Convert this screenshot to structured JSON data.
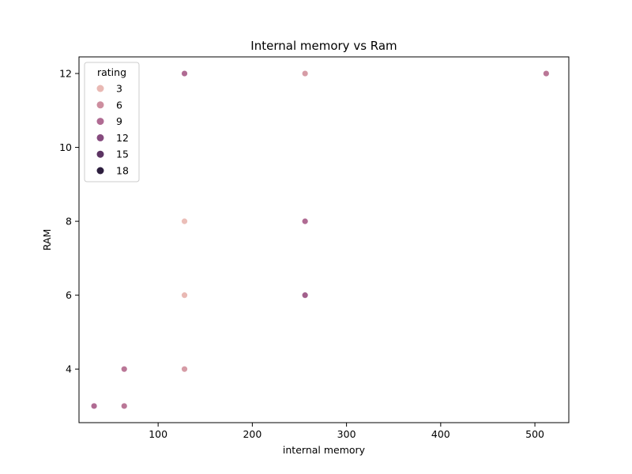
{
  "chart_data": {
    "type": "scatter",
    "title": "Internal memory vs Ram",
    "xlabel": "internal memory",
    "ylabel": "RAM",
    "xlim": [
      16,
      536
    ],
    "ylim": [
      2.55,
      12.45
    ],
    "x_ticks": [
      100,
      200,
      300,
      400,
      500
    ],
    "y_ticks": [
      4,
      6,
      8,
      10,
      12
    ],
    "grid": false,
    "legend": {
      "title": "rating",
      "placement": "top-left",
      "entries": [
        {
          "label": "3",
          "color": "#e9b9b4"
        },
        {
          "label": "6",
          "color": "#cd8e9f"
        },
        {
          "label": "9",
          "color": "#b06b93"
        },
        {
          "label": "12",
          "color": "#864b7e"
        },
        {
          "label": "15",
          "color": "#5c3463"
        },
        {
          "label": "18",
          "color": "#2d1e3e"
        }
      ]
    },
    "points": [
      {
        "x": 32,
        "y": 3,
        "rating": 9
      },
      {
        "x": 64,
        "y": 3,
        "rating": 8
      },
      {
        "x": 64,
        "y": 4,
        "rating": 8
      },
      {
        "x": 128,
        "y": 4,
        "rating": 5
      },
      {
        "x": 128,
        "y": 6,
        "rating": 3
      },
      {
        "x": 128,
        "y": 8,
        "rating": 2
      },
      {
        "x": 128,
        "y": 12,
        "rating": 9
      },
      {
        "x": 256,
        "y": 6,
        "rating": 10
      },
      {
        "x": 256,
        "y": 8,
        "rating": 9
      },
      {
        "x": 256,
        "y": 12,
        "rating": 5
      },
      {
        "x": 512,
        "y": 12,
        "rating": 8
      }
    ]
  }
}
